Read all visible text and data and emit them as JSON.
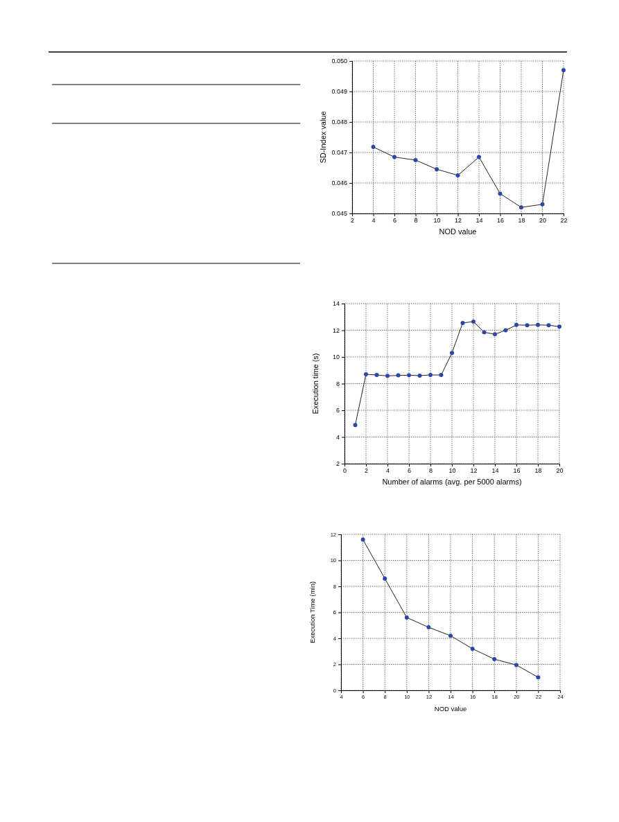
{
  "chart_data": [
    {
      "type": "line",
      "xlabel": "NOD value",
      "ylabel": "SD-Index value",
      "x": [
        4,
        6,
        8,
        10,
        12,
        14,
        16,
        18,
        20,
        22
      ],
      "series": [
        {
          "color": "#2e46a8",
          "values": [
            0.04718,
            0.04685,
            0.04675,
            0.04645,
            0.04625,
            0.04685,
            0.04565,
            0.0452,
            0.0453,
            0.0497
          ]
        }
      ],
      "xlim": [
        2,
        22
      ],
      "xticks": [
        2,
        4,
        6,
        8,
        10,
        12,
        14,
        16,
        18,
        20,
        22
      ],
      "ylim": [
        0.045,
        0.05
      ],
      "yticks": [
        {
          "value": 0.045,
          "label": "0.045"
        },
        {
          "value": 0.046,
          "label": "0.046"
        },
        {
          "value": 0.047,
          "label": "0.047"
        },
        {
          "value": 0.048,
          "label": "0.048"
        },
        {
          "value": 0.049,
          "label": "0.049"
        },
        {
          "value": 0.05,
          "label": "0.050"
        }
      ],
      "grid": true,
      "marker": "circle",
      "line_style": "solid"
    },
    {
      "type": "line",
      "xlabel": "Number of alarms (avg. per 5000 alarms)",
      "ylabel": "Execution time (s)",
      "x": [
        1,
        2,
        3,
        4,
        5,
        6,
        7,
        8,
        9,
        10,
        11,
        12,
        13,
        14,
        15,
        16,
        17,
        18,
        19,
        20
      ],
      "series": [
        {
          "color": "#2e46a8",
          "values": [
            4.9,
            8.7,
            8.65,
            8.58,
            8.62,
            8.63,
            8.6,
            8.65,
            8.65,
            10.3,
            12.55,
            12.65,
            11.85,
            11.7,
            12.0,
            12.4,
            12.38,
            12.4,
            12.38,
            12.27
          ]
        }
      ],
      "xlim": [
        0,
        20
      ],
      "xticks": [
        0,
        2,
        4,
        6,
        8,
        10,
        12,
        14,
        16,
        18,
        20
      ],
      "ylim": [
        2,
        14
      ],
      "yticks": [
        2,
        4,
        6,
        8,
        10,
        12,
        14
      ],
      "grid": true,
      "marker": "circle",
      "line_style": "solid"
    },
    {
      "type": "line",
      "xlabel": "NOD value",
      "ylabel": "Execution Time (min)",
      "x": [
        6,
        8,
        10,
        12,
        14,
        16,
        18,
        20,
        22
      ],
      "series": [
        {
          "color": "#2e46a8",
          "values": [
            11.6,
            8.6,
            5.6,
            4.85,
            4.2,
            3.2,
            2.4,
            1.95,
            1.0
          ]
        }
      ],
      "xlim": [
        4,
        24
      ],
      "xticks": [
        4,
        6,
        8,
        10,
        12,
        14,
        16,
        18,
        20,
        22,
        24
      ],
      "ylim": [
        0,
        12
      ],
      "yticks": [
        0,
        2,
        4,
        6,
        8,
        10,
        12
      ],
      "grid": true,
      "marker": "circle",
      "line_style": "solid"
    }
  ]
}
